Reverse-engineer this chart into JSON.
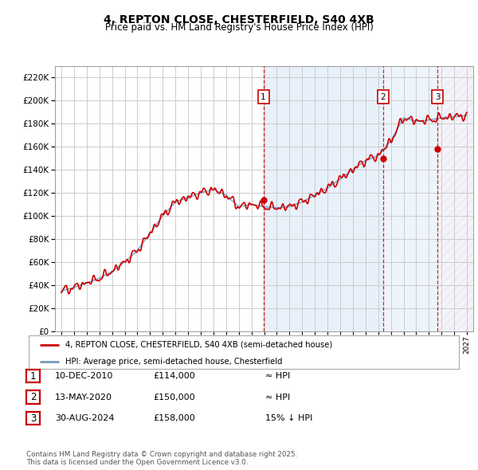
{
  "title1": "4, REPTON CLOSE, CHESTERFIELD, S40 4XB",
  "title2": "Price paid vs. HM Land Registry's House Price Index (HPI)",
  "ylim": [
    0,
    230000
  ],
  "yticks": [
    0,
    20000,
    40000,
    60000,
    80000,
    100000,
    120000,
    140000,
    160000,
    180000,
    200000,
    220000
  ],
  "xlim_start": 1994.5,
  "xlim_end": 2027.5,
  "sale_dates": [
    2010.94,
    2020.37,
    2024.67
  ],
  "sale_labels": [
    "1",
    "2",
    "3"
  ],
  "sale_prices": [
    114000,
    150000,
    158000
  ],
  "sale_info": [
    {
      "num": "1",
      "date": "10-DEC-2010",
      "price": "£114,000",
      "hpi": "≈ HPI"
    },
    {
      "num": "2",
      "date": "13-MAY-2020",
      "price": "£150,000",
      "hpi": "≈ HPI"
    },
    {
      "num": "3",
      "date": "30-AUG-2024",
      "price": "£158,000",
      "hpi": "15% ↓ HPI"
    }
  ],
  "legend_line1": "4, REPTON CLOSE, CHESTERFIELD, S40 4XB (semi-detached house)",
  "legend_line2": "HPI: Average price, semi-detached house, Chesterfield",
  "footnote": "Contains HM Land Registry data © Crown copyright and database right 2025.\nThis data is licensed under the Open Government Licence v3.0.",
  "bg": "#ffffff",
  "grid_color": "#cccccc",
  "red": "#cc0000",
  "blue": "#7799bb",
  "vline_color": "#cc0000"
}
